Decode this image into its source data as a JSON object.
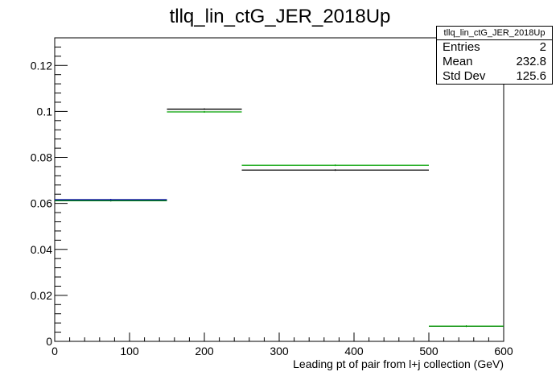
{
  "chart_data": {
    "type": "histogram",
    "title": "tllq_lin_ctG_JER_2018Up",
    "xlabel": "Leading pt of pair from l+j collection (GeV)",
    "ylabel": "",
    "xlim": [
      0,
      600
    ],
    "ylim": [
      0,
      0.132
    ],
    "x_ticks": [
      "0",
      "100",
      "200",
      "300",
      "400",
      "500",
      "600"
    ],
    "y_ticks": [
      "0",
      "0.02",
      "0.04",
      "0.06",
      "0.08",
      "0.1",
      "0.12"
    ],
    "bin_edges": [
      0,
      150,
      250,
      500,
      600
    ],
    "series": [
      {
        "color": "#000000",
        "values": [
          0.0612,
          0.101,
          0.0745,
          0.0066
        ]
      },
      {
        "color": "#00a000",
        "values": [
          0.0612,
          0.0998,
          0.0766,
          0.0066
        ]
      },
      {
        "color": "#0000a0",
        "values": [
          0.0616,
          null,
          null,
          null
        ]
      }
    ],
    "grid": false,
    "legend": "none"
  },
  "stats": {
    "title": "tllq_lin_ctG_JER_2018Up",
    "rows": [
      {
        "label": "Entries",
        "value": "2"
      },
      {
        "label": "Mean",
        "value": "232.8"
      },
      {
        "label": "Std Dev",
        "value": "125.6"
      }
    ]
  }
}
